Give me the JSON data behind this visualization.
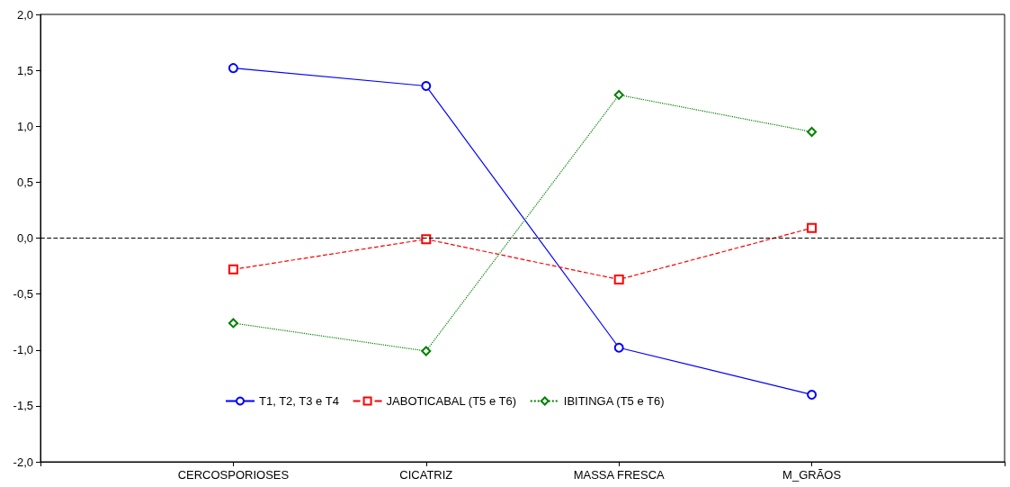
{
  "chart_data": {
    "type": "line",
    "categories": [
      null,
      "CERCOSPORIOSES",
      "CICATRIZ",
      "MASSA FRESCA",
      "M_GRÃOS",
      null
    ],
    "series": [
      {
        "name": "T1, T2, T3 e T4",
        "color": "#0000ff",
        "marker": "circle",
        "line_style": "solid",
        "values": [
          null,
          1.52,
          1.36,
          -0.98,
          -1.4,
          null
        ]
      },
      {
        "name": "JABOTICABAL (T5 e T6)",
        "color": "#ff0000",
        "marker": "square",
        "line_style": "dashed",
        "values": [
          null,
          -0.28,
          -0.01,
          -0.37,
          0.09,
          null
        ]
      },
      {
        "name": "IBITINGA (T5 e T6)",
        "color": "#008000",
        "marker": "diamond",
        "line_style": "dotted",
        "values": [
          null,
          -0.76,
          -1.01,
          1.28,
          0.95,
          null
        ]
      }
    ],
    "ylim": [
      -2,
      2
    ],
    "yticks": [
      {
        "value": -2,
        "label": "-2,0"
      },
      {
        "value": -1.5,
        "label": "-1,5"
      },
      {
        "value": -1,
        "label": "-1,0"
      },
      {
        "value": -0.5,
        "label": "-0,5"
      },
      {
        "value": 0,
        "label": "0,0"
      },
      {
        "value": 0.5,
        "label": "0,5"
      },
      {
        "value": 1,
        "label": "1,0"
      },
      {
        "value": 1.5,
        "label": "1,5"
      },
      {
        "value": 2,
        "label": "2,0"
      }
    ],
    "ref_lines": [
      {
        "axis": "y",
        "value": 0,
        "color": "#000000",
        "line_style": "dashed"
      }
    ],
    "grid": false,
    "legend": "bottom"
  }
}
